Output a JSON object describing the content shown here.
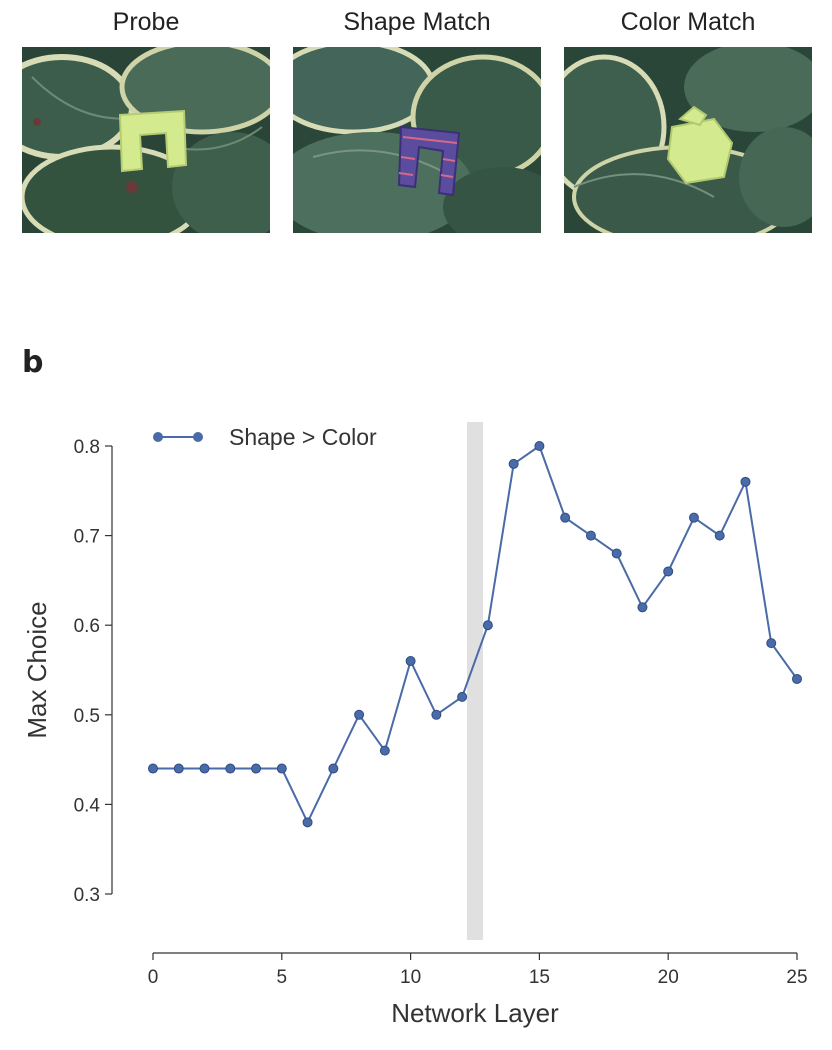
{
  "panels": [
    {
      "label": "Probe"
    },
    {
      "label": "Shape Match"
    },
    {
      "label": "Color Match"
    }
  ],
  "figure_letter": "b",
  "colors": {
    "series": "#4a6ba8",
    "highlight_band": "#e0e0e0",
    "leaf_dark": "#2f4d3f",
    "leaf_light": "#5d7f6b",
    "leaf_edge": "#d8dcb6",
    "object_green": "#d3ea8e",
    "object_pattern": "#5c4c9e"
  },
  "chart_data": {
    "type": "line",
    "xlabel": "Network Layer",
    "ylabel": "Max Choice",
    "xlim": [
      0,
      25
    ],
    "ylim": [
      0.3,
      0.8
    ],
    "xticks": [
      0,
      5,
      10,
      15,
      20,
      25
    ],
    "yticks": [
      0.3,
      0.4,
      0.5,
      0.6,
      0.7,
      0.8
    ],
    "highlight_x": 12.5,
    "legend_position": "top-left",
    "series": [
      {
        "name": "Shape > Color",
        "x": [
          0,
          1,
          2,
          3,
          4,
          5,
          6,
          7,
          8,
          9,
          10,
          11,
          12,
          13,
          14,
          15,
          16,
          17,
          18,
          19,
          20,
          21,
          22,
          23,
          24,
          25
        ],
        "y": [
          0.44,
          0.44,
          0.44,
          0.44,
          0.44,
          0.44,
          0.38,
          0.44,
          0.5,
          0.46,
          0.56,
          0.5,
          0.52,
          0.6,
          0.78,
          0.8,
          0.72,
          0.7,
          0.68,
          0.62,
          0.66,
          0.72,
          0.7,
          0.76,
          0.58,
          0.54
        ]
      }
    ]
  }
}
